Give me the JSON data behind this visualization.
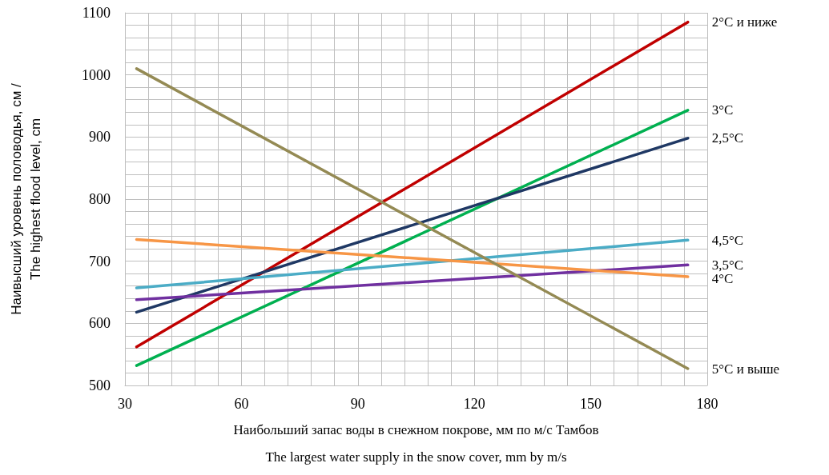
{
  "chart_data": {
    "type": "line",
    "xlabel": "Наибольший запас воды в снежном покрове, мм по м/с Тамбов\nThe largest water supply in the snow cover, mm by m/s",
    "ylabel": "Наивысший уровень половодья, см /\nThe highest flood level, cm",
    "x": [
      33,
      175
    ],
    "series": [
      {
        "name": "2°C и ниже",
        "color": "#c00000",
        "values": [
          562,
          1085
        ]
      },
      {
        "name": "3°C",
        "color": "#00b050",
        "values": [
          532,
          943
        ]
      },
      {
        "name": "2,5°C",
        "color": "#1f3864",
        "values": [
          618,
          898
        ]
      },
      {
        "name": "4,5°C",
        "color": "#4bacc6",
        "values": [
          657,
          734
        ]
      },
      {
        "name": "3,5°C",
        "color": "#7030a0",
        "values": [
          638,
          694
        ]
      },
      {
        "name": "4°C",
        "color": "#f79646",
        "values": [
          735,
          675
        ]
      },
      {
        "name": "5°C и выше",
        "color": "#948a54",
        "values": [
          1010,
          527
        ]
      }
    ],
    "xlim": [
      30,
      180
    ],
    "xticks": [
      30,
      60,
      90,
      120,
      150,
      180
    ],
    "ylim": [
      500,
      1100
    ],
    "yticks": [
      500,
      600,
      700,
      800,
      900,
      1000,
      1100
    ],
    "grid": true,
    "legend": false,
    "marker": "none",
    "line_style": "solid"
  }
}
